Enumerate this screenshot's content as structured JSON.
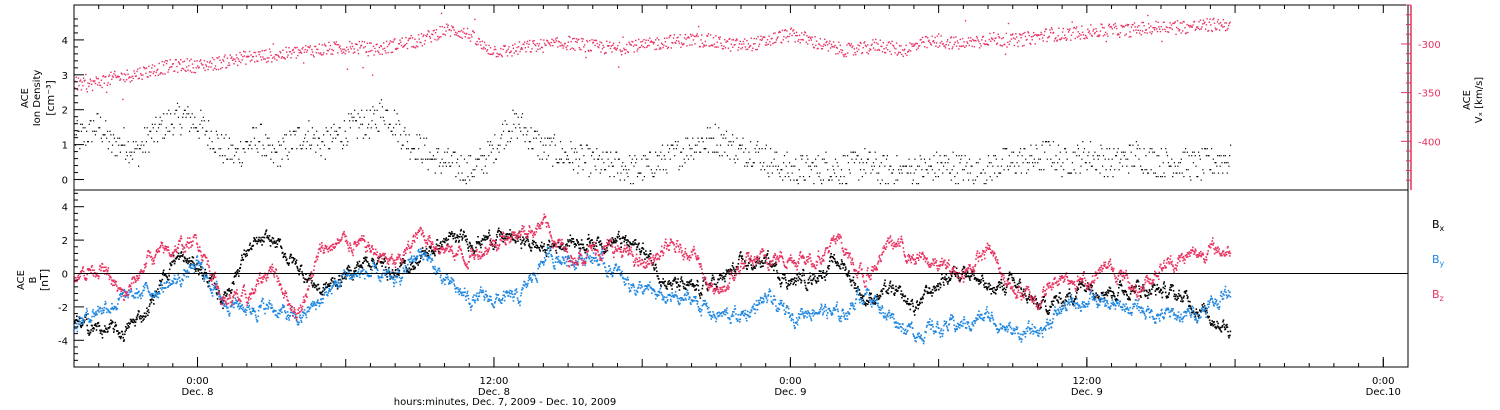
{
  "chart_data": [
    {
      "type": "scatter",
      "panel": "top",
      "ylabel": {
        "line1": "ACE",
        "line2": "Ion Density",
        "unit": "[cm⁻³]"
      },
      "ylabel_right": {
        "line1": "ACE",
        "line2": "Vₓ [km/s]"
      },
      "ylim": [
        -0.3,
        5.0
      ],
      "ylim_right": [
        -450,
        -260
      ],
      "yticks_left": [
        0,
        1,
        2,
        3,
        4
      ],
      "yticks_right": [
        -300,
        -350,
        -400
      ],
      "colors": {
        "density": "#000000",
        "velocity": "#e8315f"
      },
      "series": [
        {
          "axis": "left",
          "x": [
            -5,
            -4.5,
            -4,
            -3.5,
            -3,
            -2.5,
            -2,
            -1.5,
            -1,
            -0.5,
            0,
            0.5,
            1,
            1.5,
            2,
            2.5,
            3,
            3.5,
            4,
            4.5,
            5,
            5.5,
            6,
            6.5,
            7,
            7.5,
            8,
            8.5,
            9,
            9.5,
            10,
            10.5,
            11,
            11.5,
            12,
            12.5,
            13,
            13.5,
            14,
            14.5,
            15,
            15.5,
            16,
            16.5,
            17,
            17.5,
            18,
            18.5,
            19,
            19.5,
            20,
            20.5,
            21,
            21.5,
            22,
            22.5,
            23,
            23.5,
            24,
            24.5,
            25,
            25.5,
            26,
            26.5,
            27,
            27.5,
            28,
            28.5,
            29,
            29.5,
            30,
            30.5,
            31,
            31.5,
            32,
            32.5,
            33,
            33.5,
            34,
            34.5,
            35,
            35.5,
            36,
            36.5,
            37,
            37.5,
            38,
            38.5,
            39,
            39.5,
            40,
            40.5,
            41,
            41.5,
            42
          ],
          "y": [
            1.2,
            1.3,
            1.6,
            1.0,
            1.1,
            0.8,
            1.2,
            1.5,
            1.7,
            1.8,
            1.6,
            1.3,
            0.9,
            0.7,
            1.0,
            1.2,
            0.6,
            0.9,
            1.2,
            1.3,
            1.0,
            1.2,
            1.4,
            1.6,
            1.6,
            2.0,
            1.6,
            1.1,
            0.9,
            0.6,
            0.5,
            0.4,
            0.3,
            0.5,
            0.9,
            1.5,
            1.6,
            1.2,
            0.9,
            0.8,
            0.7,
            0.6,
            0.5,
            0.4,
            0.4,
            0.3,
            0.3,
            0.5,
            0.6,
            0.8,
            1.0,
            1.1,
            1.2,
            1.0,
            0.8,
            0.9,
            0.6,
            0.4,
            0.3,
            0.3,
            0.3,
            0.4,
            0.3,
            0.4,
            0.5,
            0.3,
            0.3,
            0.2,
            0.3,
            0.3,
            0.4,
            0.4,
            0.3,
            0.2,
            0.3,
            0.5,
            0.5,
            0.6,
            0.6,
            0.8,
            0.5,
            0.6,
            0.7,
            0.6,
            0.5,
            0.6,
            0.7,
            0.6,
            0.5,
            0.5,
            0.5,
            0.4,
            0.5,
            0.6,
            0.5
          ]
        },
        {
          "axis": "right",
          "x": [
            -5,
            -4.5,
            -4,
            -3.5,
            -3,
            -2.5,
            -2,
            -1.5,
            -1,
            -0.5,
            0,
            0.5,
            1,
            1.5,
            2,
            2.5,
            3,
            3.5,
            4,
            4.5,
            5,
            5.5,
            6,
            6.5,
            7,
            7.5,
            8,
            8.5,
            9,
            9.5,
            10,
            10.5,
            11,
            11.5,
            12,
            12.5,
            13,
            13.5,
            14,
            14.5,
            15,
            15.5,
            16,
            16.5,
            17,
            17.5,
            18,
            18.5,
            19,
            19.5,
            20,
            20.5,
            21,
            21.5,
            22,
            22.5,
            23,
            23.5,
            24,
            24.5,
            25,
            25.5,
            26,
            26.5,
            27,
            27.5,
            28,
            28.5,
            29,
            29.5,
            30,
            30.5,
            31,
            31.5,
            32,
            32.5,
            33,
            33.5,
            34,
            34.5,
            35,
            35.5,
            36,
            36.5,
            37,
            37.5,
            38,
            38.5,
            39,
            39.5,
            40,
            40.5,
            41,
            41.5,
            42
          ],
          "y": [
            -340,
            -342,
            -338,
            -335,
            -333,
            -330,
            -327,
            -324,
            -322,
            -321,
            -322,
            -320,
            -318,
            -315,
            -313,
            -312,
            -311,
            -310,
            -308,
            -306,
            -305,
            -304,
            -303,
            -303,
            -305,
            -304,
            -300,
            -298,
            -296,
            -290,
            -285,
            -286,
            -290,
            -302,
            -306,
            -307,
            -304,
            -302,
            -301,
            -300,
            -298,
            -300,
            -302,
            -303,
            -305,
            -300,
            -302,
            -299,
            -297,
            -296,
            -295,
            -296,
            -298,
            -300,
            -301,
            -299,
            -297,
            -292,
            -290,
            -293,
            -298,
            -302,
            -305,
            -306,
            -304,
            -300,
            -303,
            -306,
            -302,
            -298,
            -297,
            -298,
            -300,
            -296,
            -294,
            -295,
            -296,
            -294,
            -292,
            -289,
            -290,
            -288,
            -287,
            -286,
            -285,
            -286,
            -284,
            -283,
            -282,
            -281,
            -282,
            -281,
            -280,
            -279,
            -279
          ]
        }
      ]
    },
    {
      "type": "line",
      "panel": "bottom",
      "ylabel": {
        "line1": "ACE",
        "line2": "B",
        "unit": "[nT]"
      },
      "ylim": [
        -5.6,
        5.0
      ],
      "yticks_left": [
        -4,
        -2,
        0,
        2,
        4
      ],
      "colors": {
        "Bx": "#000000",
        "By": "#1f87e0",
        "Bz": "#e8315f"
      },
      "legend": {
        "placement": "right",
        "entries": [
          {
            "main": "B",
            "sub": "x",
            "color": "#000000"
          },
          {
            "main": "B",
            "sub": "y",
            "color": "#1f87e0"
          },
          {
            "main": "B",
            "sub": "z",
            "color": "#e8315f"
          }
        ]
      },
      "series": [
        {
          "key": "Bx",
          "x": [
            -5,
            -4,
            -3,
            -2,
            -1,
            0,
            1,
            2,
            3,
            4,
            5,
            6,
            7,
            8,
            9,
            10,
            11,
            12,
            13,
            14,
            15,
            16,
            17,
            18,
            19,
            20,
            21,
            22,
            23,
            24,
            25,
            26,
            27,
            28,
            29,
            30,
            31,
            32,
            33,
            34,
            35,
            36,
            37,
            38,
            39,
            40,
            41,
            42
          ],
          "y": [
            -3.0,
            -3.3,
            -3.5,
            -2.0,
            1.0,
            0.5,
            -1.5,
            1.5,
            2.0,
            0.5,
            -1.0,
            0.0,
            1.0,
            0.0,
            1.0,
            2.0,
            2.0,
            2.2,
            2.1,
            1.5,
            2.0,
            2.0,
            2.0,
            1.5,
            -0.5,
            -1.0,
            -0.5,
            0.5,
            0.8,
            -0.5,
            0.0,
            0.8,
            -1.5,
            -1.0,
            -2.0,
            -0.5,
            0.5,
            -1.0,
            -0.5,
            -2.0,
            -1.5,
            -0.5,
            -1.0,
            -0.8,
            -1.0,
            -1.5,
            -2.5,
            -3.5
          ]
        },
        {
          "key": "By",
          "x": [
            -5,
            -4,
            -3,
            -2,
            -1,
            0,
            1,
            2,
            3,
            4,
            5,
            6,
            7,
            8,
            9,
            10,
            11,
            12,
            13,
            14,
            15,
            16,
            17,
            18,
            19,
            20,
            21,
            22,
            23,
            24,
            25,
            26,
            27,
            28,
            29,
            30,
            31,
            32,
            33,
            34,
            35,
            36,
            37,
            38,
            39,
            40,
            41,
            42
          ],
          "y": [
            -3.0,
            -2.0,
            -1.5,
            -1.0,
            -0.5,
            0.5,
            -1.5,
            -2.0,
            -2.0,
            -2.8,
            -1.5,
            0.0,
            0.0,
            -0.5,
            1.5,
            -0.5,
            -1.5,
            -1.5,
            -1.5,
            1.0,
            1.0,
            1.0,
            0.0,
            -1.0,
            -1.5,
            -1.5,
            -2.5,
            -2.5,
            -1.5,
            -2.5,
            -2.0,
            -2.5,
            -1.0,
            -2.5,
            -3.5,
            -3.2,
            -3.0,
            -2.5,
            -3.5,
            -3.5,
            -2.0,
            -1.5,
            -2.0,
            -2.0,
            -2.5,
            -2.5,
            -1.8,
            -0.8
          ]
        },
        {
          "key": "Bz",
          "x": [
            -5,
            -4,
            -3,
            -2,
            -1,
            0,
            1,
            2,
            3,
            4,
            5,
            6,
            7,
            8,
            9,
            10,
            11,
            12,
            13,
            14,
            15,
            16,
            17,
            18,
            19,
            20,
            21,
            22,
            23,
            24,
            25,
            26,
            27,
            28,
            29,
            30,
            31,
            32,
            33,
            34,
            35,
            36,
            37,
            38,
            39,
            40,
            41,
            42
          ],
          "y": [
            0.0,
            0.5,
            -1.5,
            1.0,
            1.5,
            2.0,
            -1.5,
            -1.5,
            0.5,
            -2.5,
            1.5,
            2.0,
            1.5,
            0.5,
            2.5,
            1.5,
            1.0,
            2.0,
            2.5,
            3.0,
            1.0,
            1.5,
            1.5,
            0.5,
            1.5,
            1.5,
            -1.5,
            0.5,
            1.0,
            1.0,
            1.0,
            2.0,
            -0.5,
            2.0,
            1.0,
            0.5,
            0.0,
            1.5,
            -1.0,
            -1.5,
            0.0,
            -0.5,
            0.5,
            -1.0,
            0.5,
            1.0,
            1.5,
            1.3
          ]
        }
      ]
    }
  ],
  "x_axis": {
    "start": "2009-12-07T19:00",
    "end": "2009-12-10T01:00",
    "ticks": [
      {
        "t": "0:00",
        "d": "Dec. 8"
      },
      {
        "t": "12:00",
        "d": "Dec. 8"
      },
      {
        "t": "0:00",
        "d": "Dec. 9"
      },
      {
        "t": "12:00",
        "d": "Dec. 9"
      },
      {
        "t": "0:00",
        "d": "Dec.10"
      }
    ],
    "title": "hours:minutes, Dec. 7, 2009 - Dec. 10, 2009"
  }
}
